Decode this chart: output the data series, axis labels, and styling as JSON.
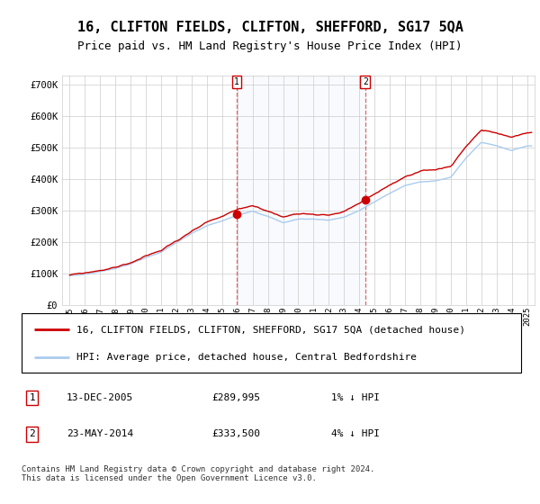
{
  "title": "16, CLIFTON FIELDS, CLIFTON, SHEFFORD, SG17 5QA",
  "subtitle": "Price paid vs. HM Land Registry's House Price Index (HPI)",
  "ylabel_ticks": [
    "£0",
    "£100K",
    "£200K",
    "£300K",
    "£400K",
    "£500K",
    "£600K",
    "£700K"
  ],
  "ytick_values": [
    0,
    100000,
    200000,
    300000,
    400000,
    500000,
    600000,
    700000
  ],
  "ylim": [
    0,
    730000
  ],
  "xlim_start": 1994.5,
  "xlim_end": 2025.5,
  "plot_bg_color": "#ffffff",
  "grid_color": "#cccccc",
  "line1_color": "#cc0000",
  "line2_color": "#aaccee",
  "purchase1_date": 2005.95,
  "purchase1_price": 289995,
  "purchase2_date": 2014.39,
  "purchase2_price": 333500,
  "legend_line1": "16, CLIFTON FIELDS, CLIFTON, SHEFFORD, SG17 5QA (detached house)",
  "legend_line2": "HPI: Average price, detached house, Central Bedfordshire",
  "annotation1_label": "1",
  "annotation1_date": "13-DEC-2005",
  "annotation1_price": "£289,995",
  "annotation1_hpi": "1% ↓ HPI",
  "annotation2_label": "2",
  "annotation2_date": "23-MAY-2014",
  "annotation2_price": "£333,500",
  "annotation2_hpi": "4% ↓ HPI",
  "footer": "Contains HM Land Registry data © Crown copyright and database right 2024.\nThis data is licensed under the Open Government Licence v3.0.",
  "xtick_years": [
    1995,
    1996,
    1997,
    1998,
    1999,
    2000,
    2001,
    2002,
    2003,
    2004,
    2005,
    2006,
    2007,
    2008,
    2009,
    2010,
    2011,
    2012,
    2013,
    2014,
    2015,
    2016,
    2017,
    2018,
    2019,
    2020,
    2021,
    2022,
    2023,
    2024,
    2025
  ]
}
